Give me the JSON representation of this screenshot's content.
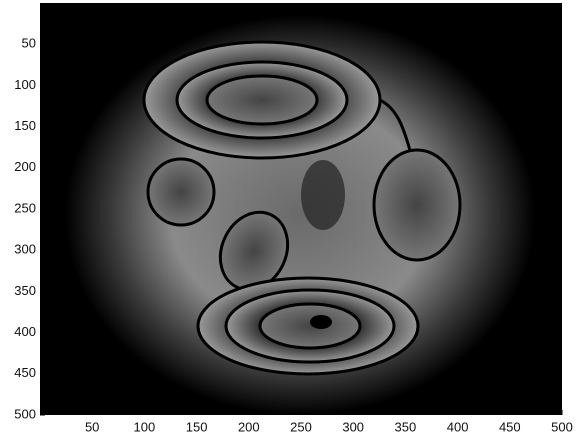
{
  "chart_data": {
    "type": "image",
    "xlim": [
      0,
      500
    ],
    "ylim": [
      0,
      500
    ],
    "y_reversed": true,
    "xticks": [
      50,
      100,
      150,
      200,
      250,
      300,
      350,
      400,
      450,
      500
    ],
    "yticks": [
      50,
      100,
      150,
      200,
      250,
      300,
      350,
      400,
      450,
      500
    ]
  }
}
